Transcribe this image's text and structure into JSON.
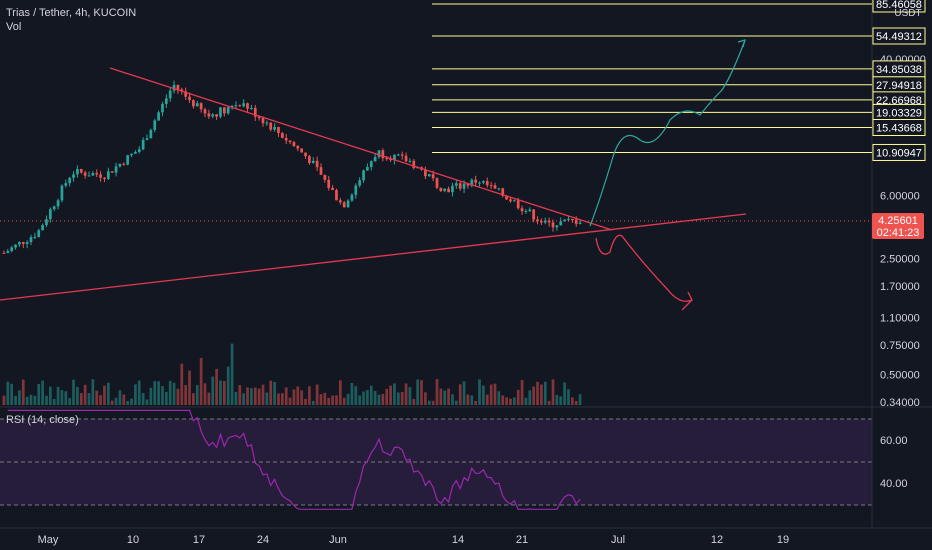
{
  "header": {
    "title": "Trias / Tether, 4h, KUCOIN",
    "volume_label": "Vol"
  },
  "rsi": {
    "label": "RSI (14, close)",
    "ticks": [
      "60.00",
      "40.00"
    ]
  },
  "price_axis": {
    "unit": "USDT",
    "ticks": [
      "40.00000",
      "6.00000",
      "2.50000",
      "1.70000",
      "1.10000",
      "0.75000",
      "0.50000",
      "0.34000"
    ]
  },
  "current_price": {
    "value": "4.25601",
    "countdown": "02:41:23",
    "color": "#ef5350"
  },
  "time_axis": {
    "ticks": [
      "May",
      "10",
      "17",
      "24",
      "Jun",
      "14",
      "21",
      "Jul",
      "12",
      "19"
    ]
  },
  "fib_levels": [
    "85.46058",
    "54.49312",
    "34.85038",
    "27.94918",
    "22.66968",
    "19.03329",
    "15.43668",
    "10.90947"
  ],
  "chart_data": {
    "type": "candlestick",
    "title": "Trias / Tether, 4h, KUCOIN",
    "y_scale": "log",
    "ylim": [
      0.34,
      90
    ],
    "unit": "USDT",
    "x_ticks": [
      "May",
      "10",
      "17",
      "24",
      "Jun",
      "14",
      "21",
      "Jul",
      "12",
      "19"
    ],
    "close_path": [
      {
        "t": "Apr 27",
        "close": 2.7
      },
      {
        "t": "Apr 30",
        "close": 3.6
      },
      {
        "t": "May 3",
        "close": 8.3
      },
      {
        "t": "May 6",
        "close": 8.0
      },
      {
        "t": "May 8",
        "close": 11.5
      },
      {
        "t": "May 10",
        "close": 28
      },
      {
        "t": "May 13",
        "close": 18
      },
      {
        "t": "May 15",
        "close": 22
      },
      {
        "t": "May 18",
        "close": 15
      },
      {
        "t": "May 20",
        "close": 10
      },
      {
        "t": "May 24",
        "close": 5.2
      },
      {
        "t": "May 28",
        "close": 11
      },
      {
        "t": "Jun 1",
        "close": 9.6
      },
      {
        "t": "Jun 7",
        "close": 6.5
      },
      {
        "t": "Jun 12",
        "close": 7.4
      },
      {
        "t": "Jun 18",
        "close": 5.6
      },
      {
        "t": "Jun 22",
        "close": 4.0
      },
      {
        "t": "Jun 26",
        "close": 4.26
      }
    ],
    "last_price": 4.25601,
    "fib_levels": [
      85.46058,
      54.49312,
      34.85038,
      27.94918,
      22.66968,
      19.03329,
      15.43668,
      10.90947
    ],
    "rsi": {
      "label": "RSI (14, close)",
      "ylim": [
        25,
        75
      ],
      "bands": [
        70,
        50,
        30
      ]
    },
    "colors": {
      "up": "#26a69a",
      "down": "#ef5350",
      "trend": "#e53950",
      "rsi": "#9c27b0",
      "fib": "#fffb91",
      "projection_up": "#2ea89b",
      "projection_down": "#e53950"
    },
    "grid": false
  }
}
